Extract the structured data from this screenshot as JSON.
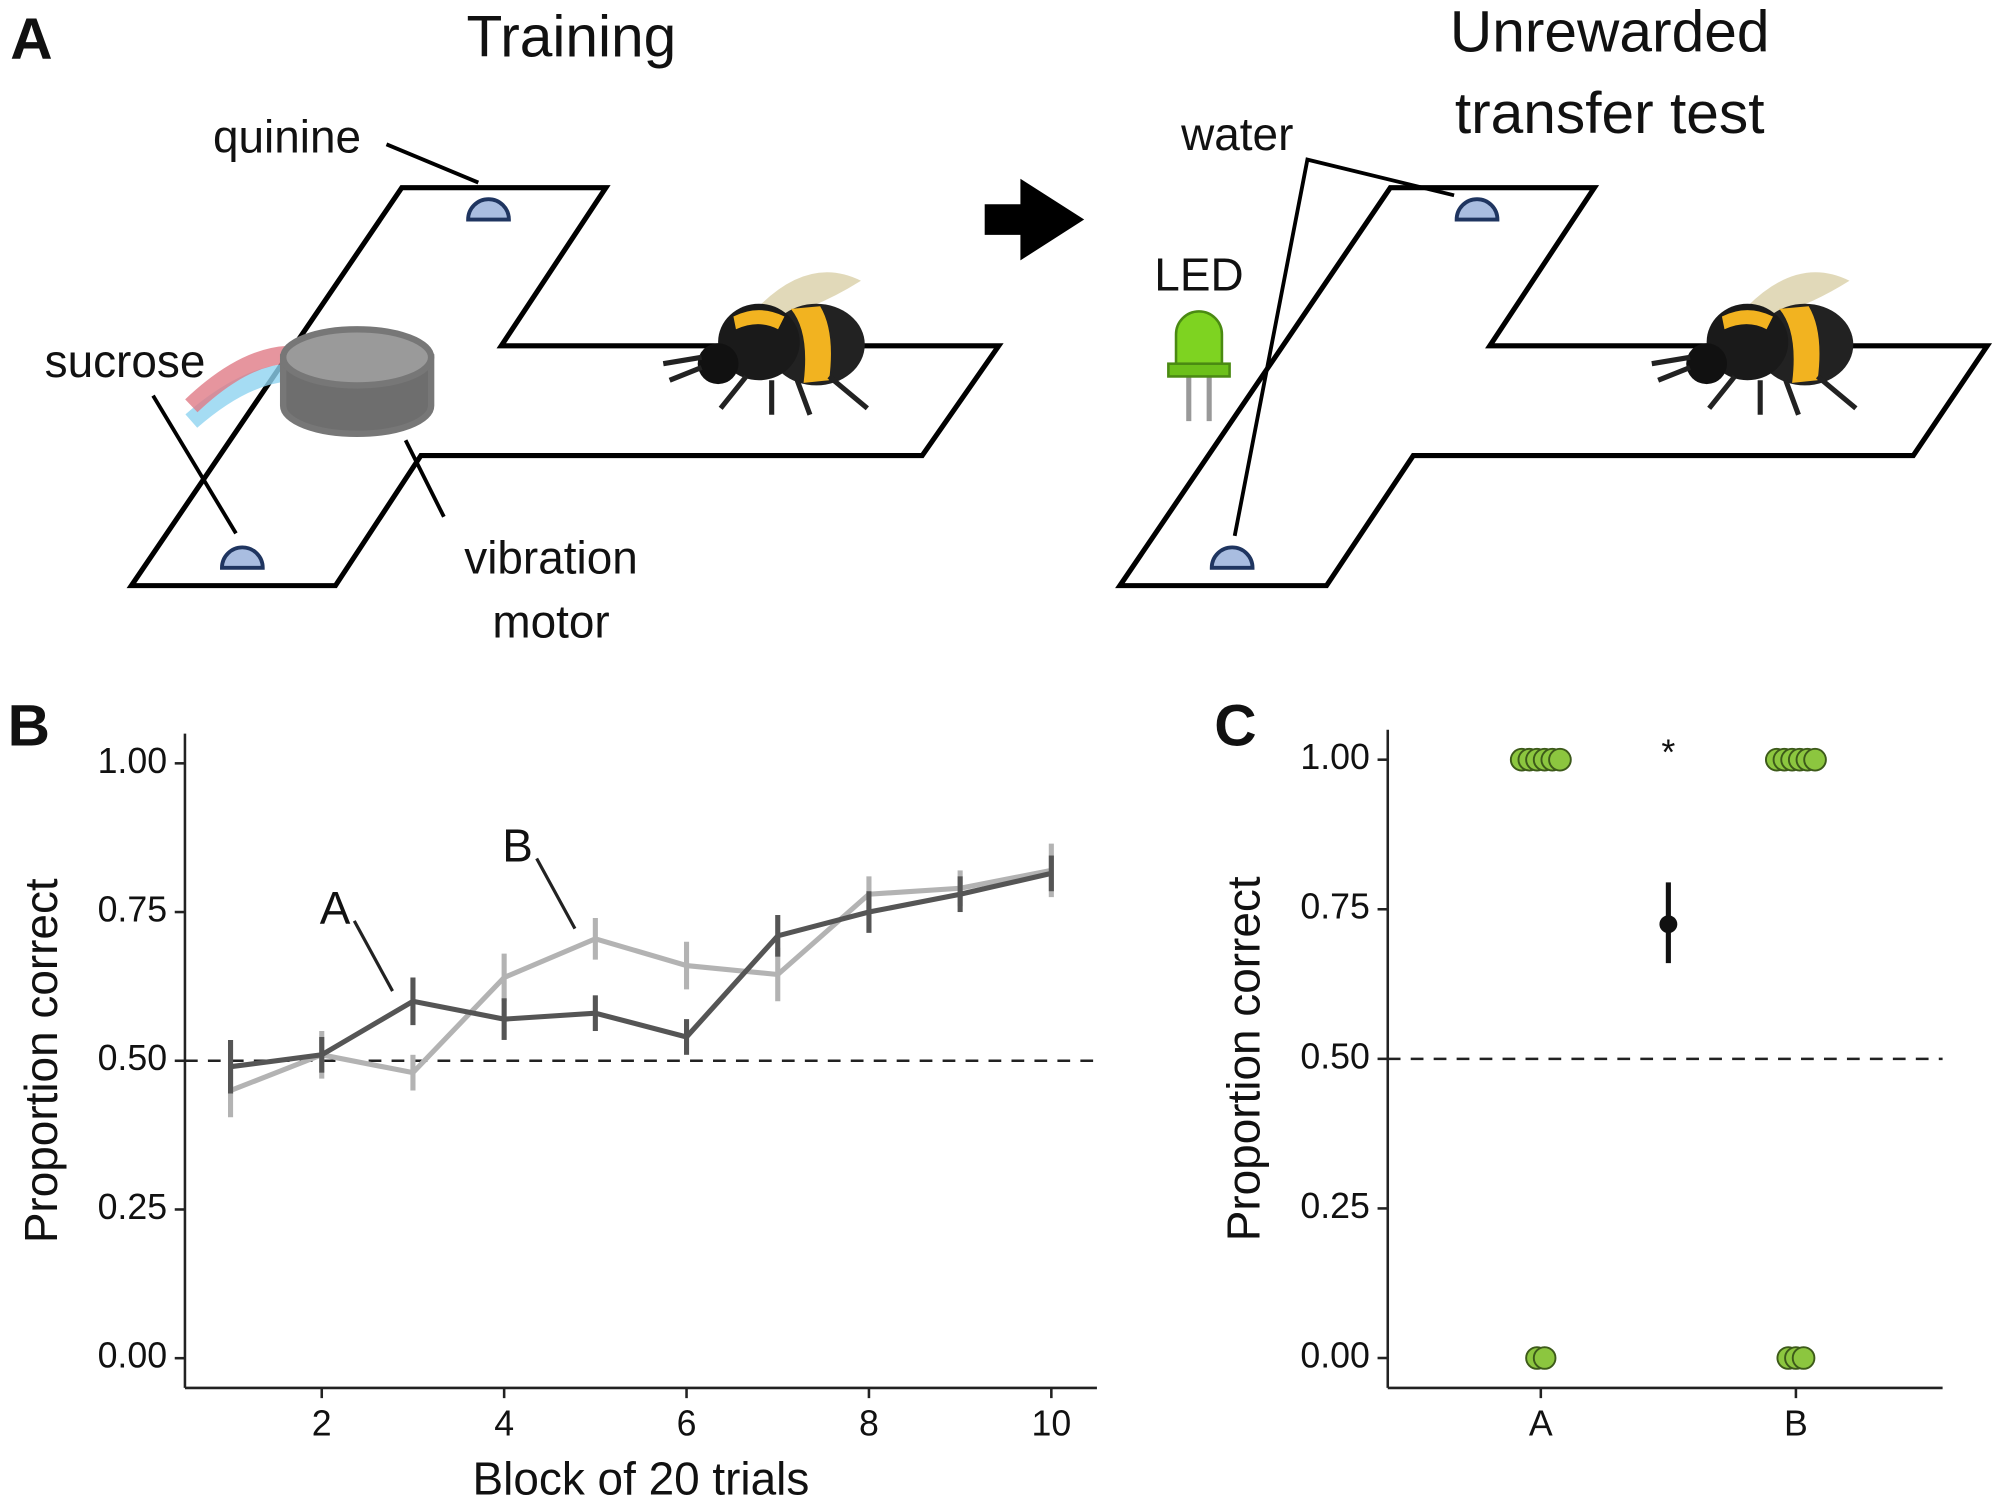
{
  "panel_labels": [
    "A",
    "B",
    "C"
  ],
  "diagram": {
    "training_title": "Training",
    "test_title": [
      "Unrewarded",
      "transfer test"
    ],
    "labels": {
      "quinine": "quinine",
      "sucrose": "sucrose",
      "motor": [
        "vibration",
        "motor"
      ],
      "water": "water",
      "led": "LED"
    }
  },
  "chart_data": [
    {
      "type": "line",
      "xlabel": "Block of 20 trials",
      "ylabel": "Proportion correct",
      "x": [
        1,
        2,
        3,
        4,
        5,
        6,
        7,
        8,
        9,
        10
      ],
      "series": [
        {
          "name": "A",
          "color": "#555555",
          "values": [
            0.49,
            0.51,
            0.6,
            0.57,
            0.58,
            0.54,
            0.71,
            0.75,
            0.78,
            0.815
          ],
          "errors": [
            0.045,
            0.03,
            0.04,
            0.035,
            0.03,
            0.03,
            0.035,
            0.035,
            0.03,
            0.03
          ]
        },
        {
          "name": "B",
          "color": "#b3b3b3",
          "values": [
            0.45,
            0.51,
            0.48,
            0.64,
            0.705,
            0.66,
            0.645,
            0.78,
            0.79,
            0.82
          ],
          "errors": [
            0.045,
            0.04,
            0.03,
            0.04,
            0.035,
            0.04,
            0.045,
            0.03,
            0.03,
            0.045
          ]
        }
      ],
      "reference_line": 0.5,
      "xlim": [
        0.5,
        10.5
      ],
      "ylim": [
        -0.05,
        1.05
      ],
      "xticks": [
        2,
        4,
        6,
        8,
        10
      ],
      "yticks": [
        {
          "value": 0,
          "label": "0.00"
        },
        {
          "value": 0.25,
          "label": "0.25"
        },
        {
          "value": 0.5,
          "label": "0.50"
        },
        {
          "value": 0.75,
          "label": "0.75"
        },
        {
          "value": 1,
          "label": "1.00"
        }
      ]
    },
    {
      "type": "strip",
      "ylabel": "Proportion correct",
      "categories": [
        "A",
        "B"
      ],
      "color": "#8cc63f",
      "points": [
        [
          1,
          1,
          1,
          1,
          1,
          1,
          0,
          0
        ],
        [
          1,
          1,
          1,
          1,
          1,
          1,
          0,
          0,
          0
        ]
      ],
      "mean": {
        "value": 0.725,
        "low": 0.66,
        "high": 0.795
      },
      "annotation": "*",
      "reference_line": 0.5,
      "ylim": [
        -0.05,
        1.05
      ],
      "yticks": [
        {
          "value": 0,
          "label": "0.00"
        },
        {
          "value": 0.25,
          "label": "0.25"
        },
        {
          "value": 0.5,
          "label": "0.50"
        },
        {
          "value": 0.75,
          "label": "0.75"
        },
        {
          "value": 1,
          "label": "1.00"
        }
      ]
    }
  ]
}
